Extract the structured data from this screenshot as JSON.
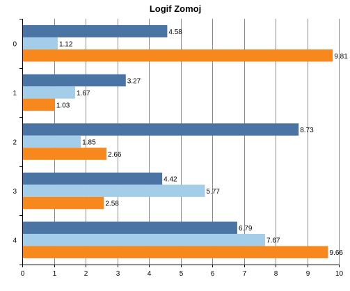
{
  "chart_data": {
    "type": "bar",
    "orientation": "horizontal",
    "title": "Logif Zomoj",
    "xlabel": "",
    "ylabel": "",
    "categories": [
      "0",
      "1",
      "2",
      "3",
      "4"
    ],
    "series": [
      {
        "values": [
          4.58,
          3.27,
          8.73,
          4.42,
          6.79
        ],
        "color": "#4a74a4"
      },
      {
        "values": [
          1.12,
          1.67,
          1.85,
          5.77,
          7.67
        ],
        "color": "#a4cde9"
      },
      {
        "values": [
          9.81,
          1.03,
          2.66,
          2.58,
          9.66
        ],
        "color": "#f6881e"
      }
    ],
    "xlim": [
      0,
      10
    ],
    "xticks": [
      "0",
      "1",
      "2",
      "3",
      "4",
      "5",
      "6",
      "7",
      "8",
      "9",
      "10"
    ],
    "grid": "vertical",
    "legend": "none"
  }
}
